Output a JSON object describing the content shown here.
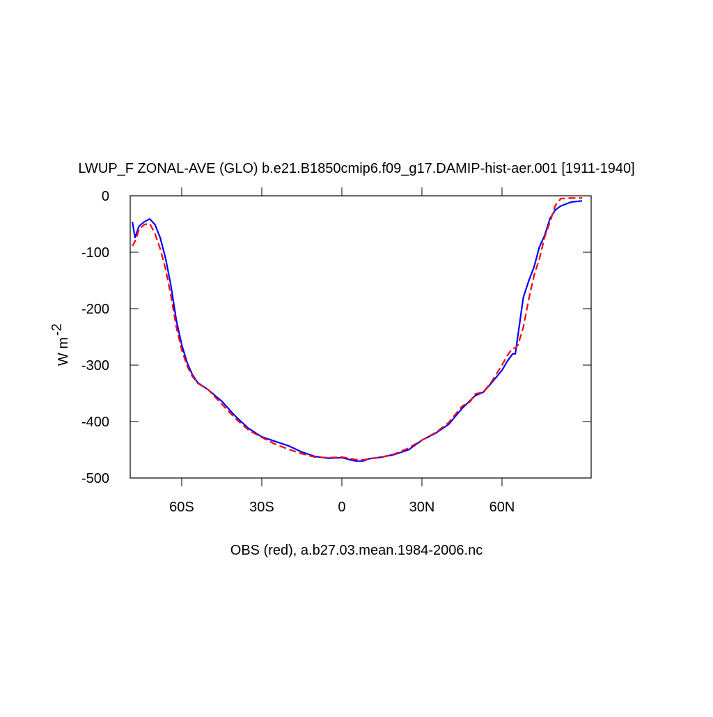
{
  "chart_data": {
    "type": "line",
    "title": "LWUP_F ZONAL-AVE (GLO) b.e21.B1850cmip6.f09_g17.DAMIP-hist-aer.001 [1911-1940]",
    "ylabel": "W m",
    "ylabel_sup": "-2",
    "xlabel": "OBS (red), a.b27.03.mean.1984-2006.nc",
    "x": [
      -78.5,
      -77.5,
      -76,
      -74,
      -72,
      -70,
      -68,
      -66,
      -64,
      -62,
      -60,
      -58,
      -56,
      -54,
      -50,
      -45,
      -40,
      -35,
      -30,
      -25,
      -20,
      -15,
      -10,
      -5,
      0,
      5,
      8,
      10,
      15,
      20,
      25,
      30,
      35,
      40,
      45,
      48,
      50,
      53,
      56,
      60,
      62,
      64,
      65,
      66,
      68,
      70,
      72,
      74,
      76,
      78,
      80,
      82,
      86,
      90
    ],
    "series": [
      {
        "color": "#0000ff",
        "dash": "solid",
        "values": [
          -46,
          -74,
          -54,
          -46,
          -41,
          -51,
          -75,
          -112,
          -160,
          -221,
          -264,
          -295,
          -317,
          -331,
          -344,
          -364,
          -390,
          -412,
          -427,
          -435,
          -443,
          -454,
          -462,
          -465,
          -464,
          -470,
          -470,
          -466,
          -463,
          -458,
          -450,
          -433,
          -421,
          -405,
          -377,
          -363,
          -354,
          -348,
          -332,
          -309,
          -293,
          -280,
          -280,
          -246,
          -180,
          -151,
          -126,
          -91,
          -70,
          -40,
          -25,
          -18,
          -11,
          -9
        ]
      },
      {
        "color": "#ff0000",
        "dash": "dashed",
        "values": [
          -89,
          -81,
          -60,
          -51,
          -49,
          -67,
          -95,
          -131,
          -178,
          -233,
          -273,
          -301,
          -320,
          -332,
          -344,
          -369,
          -394,
          -415,
          -428,
          -440,
          -449,
          -457,
          -463,
          -464,
          -463,
          -467,
          -468,
          -466,
          -463,
          -457,
          -447,
          -433,
          -420,
          -402,
          -373,
          -365,
          -351,
          -348,
          -330,
          -300,
          -283,
          -270,
          -270,
          -264,
          -233,
          -184,
          -141,
          -112,
          -73,
          -46,
          -17,
          -5,
          -4,
          -4
        ]
      }
    ],
    "xlim": [
      -79.3,
      93.4
    ],
    "ylim": [
      -500,
      0
    ],
    "xticks": [
      {
        "value": -60,
        "label": "60S"
      },
      {
        "value": -30,
        "label": "30S"
      },
      0,
      {
        "value": 30,
        "label": "30N"
      },
      {
        "value": 60,
        "label": "60N"
      }
    ],
    "yticks": [
      0,
      -100,
      -200,
      -300,
      -400,
      -500
    ]
  }
}
